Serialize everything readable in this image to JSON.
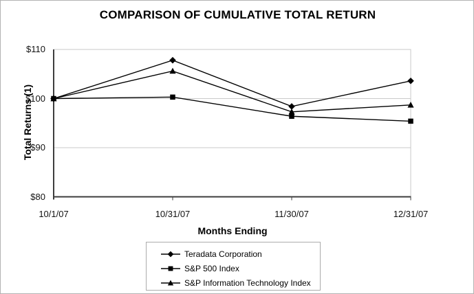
{
  "page": {
    "title": "COMPARISON OF CUMULATIVE TOTAL RETURN"
  },
  "chart_data": {
    "type": "line",
    "title": "COMPARISON OF CUMULATIVE TOTAL RETURN",
    "xlabel": "Months Ending",
    "ylabel": "Total Returns (1)",
    "categories": [
      "10/1/07",
      "10/31/07",
      "11/30/07",
      "12/31/07"
    ],
    "series": [
      {
        "name": "Teradata Corporation",
        "marker": "diamond",
        "values": [
          100,
          107.8,
          98.4,
          103.6
        ]
      },
      {
        "name": "S&P 500 Index",
        "marker": "square",
        "values": [
          100,
          100.3,
          96.4,
          95.4
        ]
      },
      {
        "name": "S&P Information Technology Index",
        "marker": "triangle",
        "values": [
          100,
          105.6,
          97.3,
          98.7
        ]
      }
    ],
    "ylim": [
      80,
      110
    ],
    "ytick_labels": [
      "$110",
      "$100",
      "$90",
      "$80"
    ],
    "grid": true,
    "legend_position": "bottom"
  },
  "colors": {
    "line": "#000000",
    "grid": "#c9c9c9",
    "axis": "#3d3d3d",
    "plot_border": "#c9c9c9",
    "page_border": "#b2b2b2",
    "legend_border": "#ababab"
  }
}
